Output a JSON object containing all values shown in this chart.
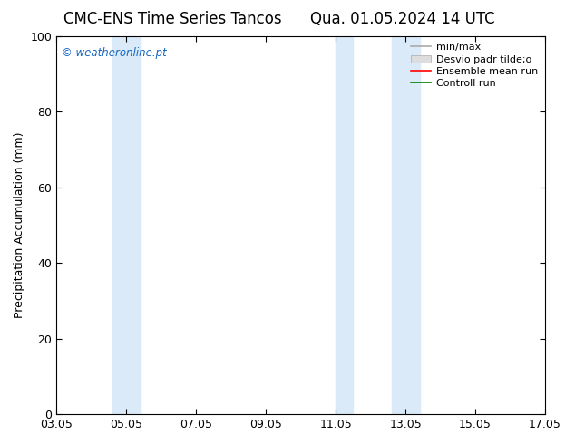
{
  "title_left": "CMC-ENS Time Series Tancos",
  "title_right": "Qua. 01.05.2024 14 UTC",
  "ylabel": "Precipitation Accumulation (mm)",
  "ylim": [
    0,
    100
  ],
  "xtick_positions": [
    3,
    5,
    7,
    9,
    11,
    13,
    15,
    17
  ],
  "xtick_labels": [
    "03.05",
    "05.05",
    "07.05",
    "09.05",
    "11.05",
    "13.05",
    "15.05",
    "17.05"
  ],
  "ytick_labels": [
    0,
    20,
    40,
    60,
    80,
    100
  ],
  "shaded_regions": [
    {
      "xmin": 4.6,
      "xmax": 5.0,
      "color": "#daeaf8"
    },
    {
      "xmin": 5.0,
      "xmax": 5.4,
      "color": "#daeaf8"
    },
    {
      "xmin": 11.0,
      "xmax": 11.5,
      "color": "#daeaf8"
    },
    {
      "xmin": 12.6,
      "xmax": 13.4,
      "color": "#daeaf8"
    }
  ],
  "watermark_text": "© weatheronline.pt",
  "watermark_color": "#1565c0",
  "legend_label_1": "min/max",
  "legend_label_2": "Desvio padr tilde;o",
  "legend_label_3": "Ensemble mean run",
  "legend_label_4": "Controll run",
  "background_color": "#ffffff",
  "title_fontsize": 12,
  "axis_fontsize": 9,
  "legend_fontsize": 8
}
